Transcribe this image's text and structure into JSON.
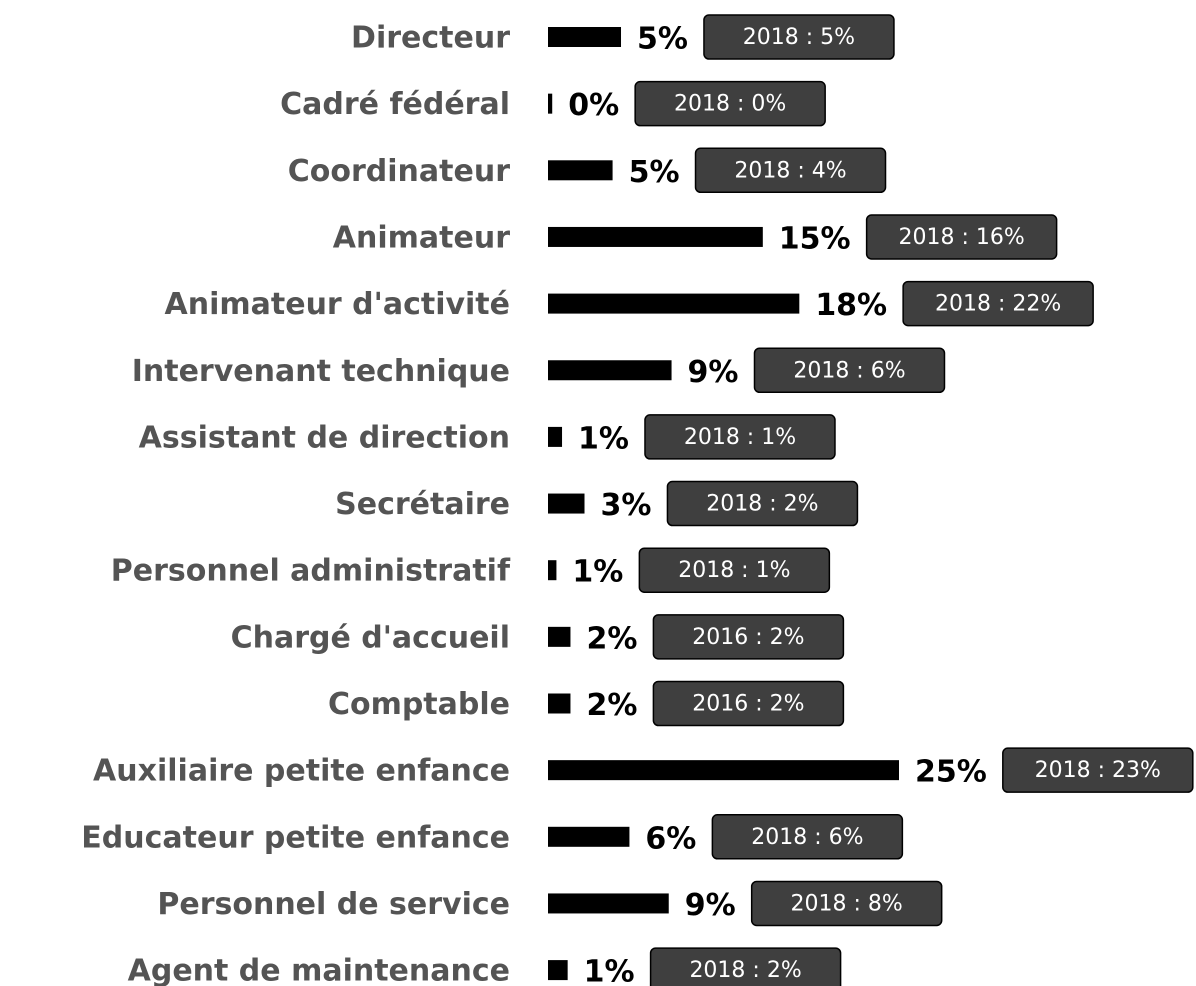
{
  "chart_data": {
    "type": "hbar",
    "categories": [
      "Directeur",
      "Cadré fédéral",
      "Coordinateur",
      "Animateur",
      "Animateur d'activité",
      "Intervenant technique",
      "Assistant de direction",
      "Secrétaire",
      "Personnel administratif",
      "Chargé d'accueil",
      "Comptable",
      "Auxiliaire petite enfance",
      "Educateur petite enfance",
      "Personnel de service",
      "Agent de maintenance"
    ],
    "values": [
      5.2,
      0.3,
      4.6,
      15.3,
      17.9,
      8.8,
      1.0,
      2.6,
      0.6,
      1.6,
      1.6,
      25,
      5.8,
      8.6,
      1.4
    ],
    "value_labels": [
      "5%",
      "0%",
      "5%",
      "15%",
      "18%",
      "9%",
      "1%",
      "3%",
      "1%",
      "2%",
      "2%",
      "25%",
      "6%",
      "9%",
      "1%"
    ],
    "comparisons": [
      "2018 : 5%",
      "2018 : 0%",
      "2018 : 4%",
      "2018 : 16%",
      "2018 : 22%",
      "2018 : 6%",
      "2018 : 1%",
      "2018 : 2%",
      "2018 : 1%",
      "2016 : 2%",
      "2016 : 2%",
      "2018 : 23%",
      "2018 : 6%",
      "2018 : 8%",
      "2018 : 2%"
    ],
    "color": "#000000",
    "xlim": [
      0,
      25
    ]
  }
}
